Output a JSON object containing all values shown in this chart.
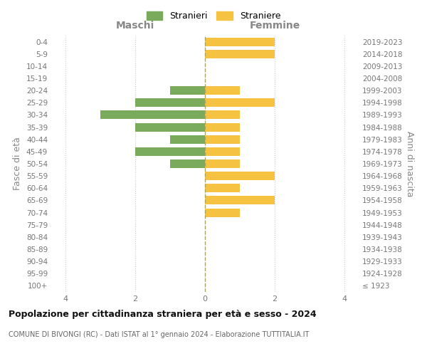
{
  "age_groups": [
    "100+",
    "95-99",
    "90-94",
    "85-89",
    "80-84",
    "75-79",
    "70-74",
    "65-69",
    "60-64",
    "55-59",
    "50-54",
    "45-49",
    "40-44",
    "35-39",
    "30-34",
    "25-29",
    "20-24",
    "15-19",
    "10-14",
    "5-9",
    "0-4"
  ],
  "birth_years": [
    "≤ 1923",
    "1924-1928",
    "1929-1933",
    "1934-1938",
    "1939-1943",
    "1944-1948",
    "1949-1953",
    "1954-1958",
    "1959-1963",
    "1964-1968",
    "1969-1973",
    "1974-1978",
    "1979-1983",
    "1984-1988",
    "1989-1993",
    "1994-1998",
    "1999-2003",
    "2004-2008",
    "2009-2013",
    "2014-2018",
    "2019-2023"
  ],
  "stranieri": [
    0,
    0,
    0,
    0,
    0,
    0,
    0,
    0,
    0,
    0,
    1,
    2,
    1,
    2,
    3,
    2,
    1,
    0,
    0,
    0,
    0
  ],
  "straniere": [
    0,
    0,
    0,
    0,
    0,
    0,
    1,
    2,
    1,
    2,
    1,
    1,
    1,
    1,
    1,
    2,
    1,
    0,
    0,
    2,
    2
  ],
  "color_stranieri": "#7aaa5c",
  "color_straniere": "#f5c242",
  "title": "Popolazione per cittadinanza straniera per età e sesso - 2024",
  "subtitle": "COMUNE DI BIVONGI (RC) - Dati ISTAT al 1° gennaio 2024 - Elaborazione TUTTITALIA.IT",
  "xlabel_left": "Maschi",
  "xlabel_right": "Femmine",
  "ylabel_left": "Fasce di età",
  "ylabel_right": "Anni di nascita",
  "xlim": 4.4,
  "legend_stranieri": "Stranieri",
  "legend_straniere": "Straniere",
  "background_color": "#ffffff",
  "grid_color": "#cccccc"
}
